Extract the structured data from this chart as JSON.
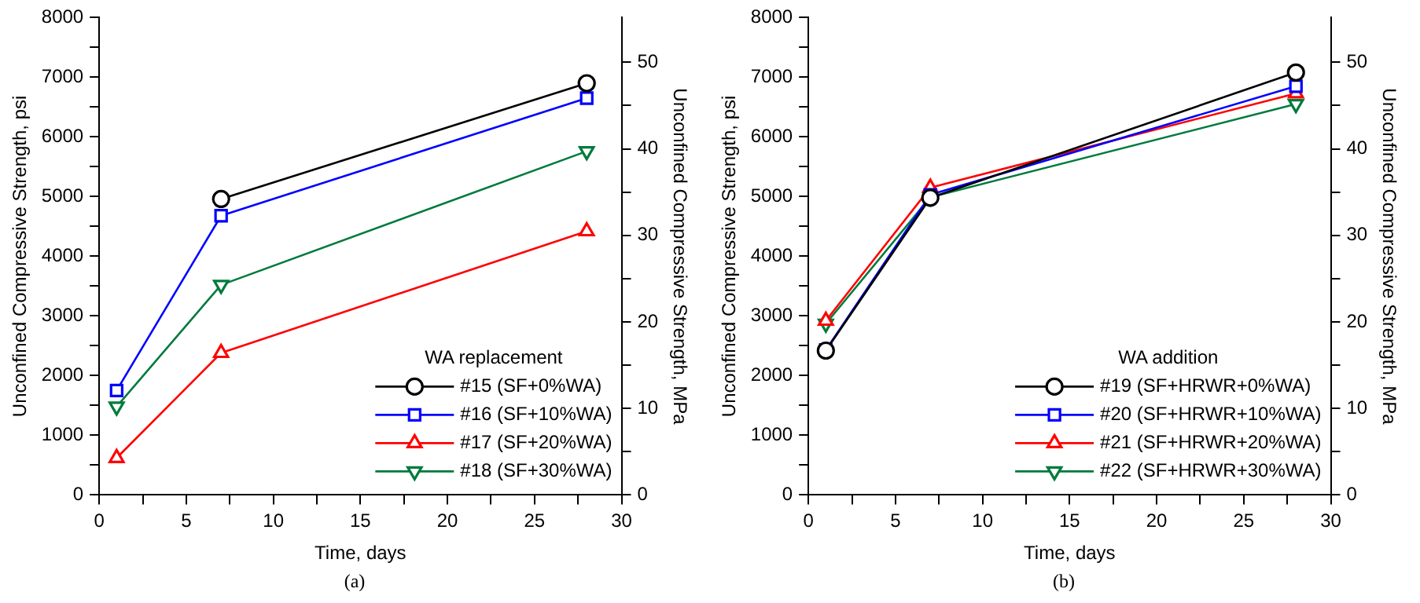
{
  "chart_data": [
    {
      "type": "line",
      "xlabel": "Time, days",
      "ylabel": "Unconfined Compressive Strength, psi",
      "y2label": "Unconfined Compressive Strength, MPa",
      "legend_title": "WA replacement",
      "legend": "bottom right",
      "grid": false,
      "annotations": [
        "(a)"
      ],
      "x": [
        1,
        7,
        28
      ],
      "xlim": [
        0,
        30
      ],
      "xticks": [
        0,
        {
          "value": 2.5,
          "label": null
        },
        5,
        {
          "value": 7.5,
          "label": null
        },
        10,
        {
          "value": 12.5,
          "label": null
        },
        15,
        {
          "value": 17.5,
          "label": null
        },
        20,
        {
          "value": 22.5,
          "label": null
        },
        25,
        {
          "value": 27.5,
          "label": null
        },
        30
      ],
      "ylim": [
        0,
        8000
      ],
      "yticks": [
        0,
        {
          "value": 500,
          "label": null
        },
        1000,
        {
          "value": 1500,
          "label": null
        },
        2000,
        {
          "value": 2500,
          "label": null
        },
        3000,
        {
          "value": 3500,
          "label": null
        },
        4000,
        {
          "value": 4500,
          "label": null
        },
        5000,
        {
          "value": 5500,
          "label": null
        },
        6000,
        {
          "value": 6500,
          "label": null
        },
        7000,
        {
          "value": 7500,
          "label": null
        },
        8000
      ],
      "y2lim": [
        0,
        55.16
      ],
      "y2ticks": [
        0,
        {
          "value": 5,
          "label": null
        },
        10,
        {
          "value": 15,
          "label": null
        },
        20,
        {
          "value": 25,
          "label": null
        },
        30,
        {
          "value": 35,
          "label": null
        },
        40,
        {
          "value": 45,
          "label": null
        },
        50
      ],
      "series": [
        {
          "name": "#15 (SF+0%WA)",
          "color": "#000000",
          "marker": "circle",
          "values": [
            null,
            4960,
            6900
          ]
        },
        {
          "name": "#16 (SF+10%WA)",
          "color": "#0000ff",
          "marker": "square",
          "values": [
            1750,
            4680,
            6650
          ]
        },
        {
          "name": "#17 (SF+20%WA)",
          "color": "#ff0000",
          "marker": "triangle",
          "values": [
            620,
            2380,
            4420
          ]
        },
        {
          "name": "#18 (SF+30%WA)",
          "color": "#007a3d",
          "marker": "triangle-down",
          "values": [
            1480,
            3520,
            5760
          ]
        }
      ]
    },
    {
      "type": "line",
      "xlabel": "Time, days",
      "ylabel": "Unconfined Compressive Strength, psi",
      "y2label": "Unconfined Compressive Strength, MPa",
      "legend_title": "WA addition",
      "legend": "bottom right",
      "grid": false,
      "annotations": [
        "(b)"
      ],
      "x": [
        1,
        7,
        28
      ],
      "xlim": [
        0,
        30
      ],
      "xticks": [
        0,
        {
          "value": 2.5,
          "label": null
        },
        5,
        {
          "value": 7.5,
          "label": null
        },
        10,
        {
          "value": 12.5,
          "label": null
        },
        15,
        {
          "value": 17.5,
          "label": null
        },
        20,
        {
          "value": 22.5,
          "label": null
        },
        25,
        {
          "value": 27.5,
          "label": null
        },
        30
      ],
      "ylim": [
        0,
        8000
      ],
      "yticks": [
        0,
        {
          "value": 500,
          "label": null
        },
        1000,
        {
          "value": 1500,
          "label": null
        },
        2000,
        {
          "value": 2500,
          "label": null
        },
        3000,
        {
          "value": 3500,
          "label": null
        },
        4000,
        {
          "value": 4500,
          "label": null
        },
        5000,
        {
          "value": 5500,
          "label": null
        },
        6000,
        {
          "value": 6500,
          "label": null
        },
        7000,
        {
          "value": 7500,
          "label": null
        },
        8000
      ],
      "y2lim": [
        0,
        55.16
      ],
      "y2ticks": [
        0,
        {
          "value": 5,
          "label": null
        },
        10,
        {
          "value": 15,
          "label": null
        },
        20,
        {
          "value": 25,
          "label": null
        },
        30,
        {
          "value": 35,
          "label": null
        },
        40,
        {
          "value": 45,
          "label": null
        },
        50
      ],
      "series": [
        {
          "name": "#19 (SF+HRWR+0%WA)",
          "color": "#000000",
          "marker": "circle",
          "values": [
            2420,
            4980,
            7080
          ]
        },
        {
          "name": "#20 (SF+HRWR+10%WA)",
          "color": "#0000ff",
          "marker": "square",
          "values": [
            2430,
            5030,
            6850
          ]
        },
        {
          "name": "#21 (SF+HRWR+20%WA)",
          "color": "#ff0000",
          "marker": "triangle",
          "values": [
            2920,
            5150,
            6730
          ]
        },
        {
          "name": "#22 (SF+HRWR+30%WA)",
          "color": "#007a3d",
          "marker": "triangle-down",
          "values": [
            2870,
            4990,
            6550
          ]
        }
      ]
    }
  ]
}
